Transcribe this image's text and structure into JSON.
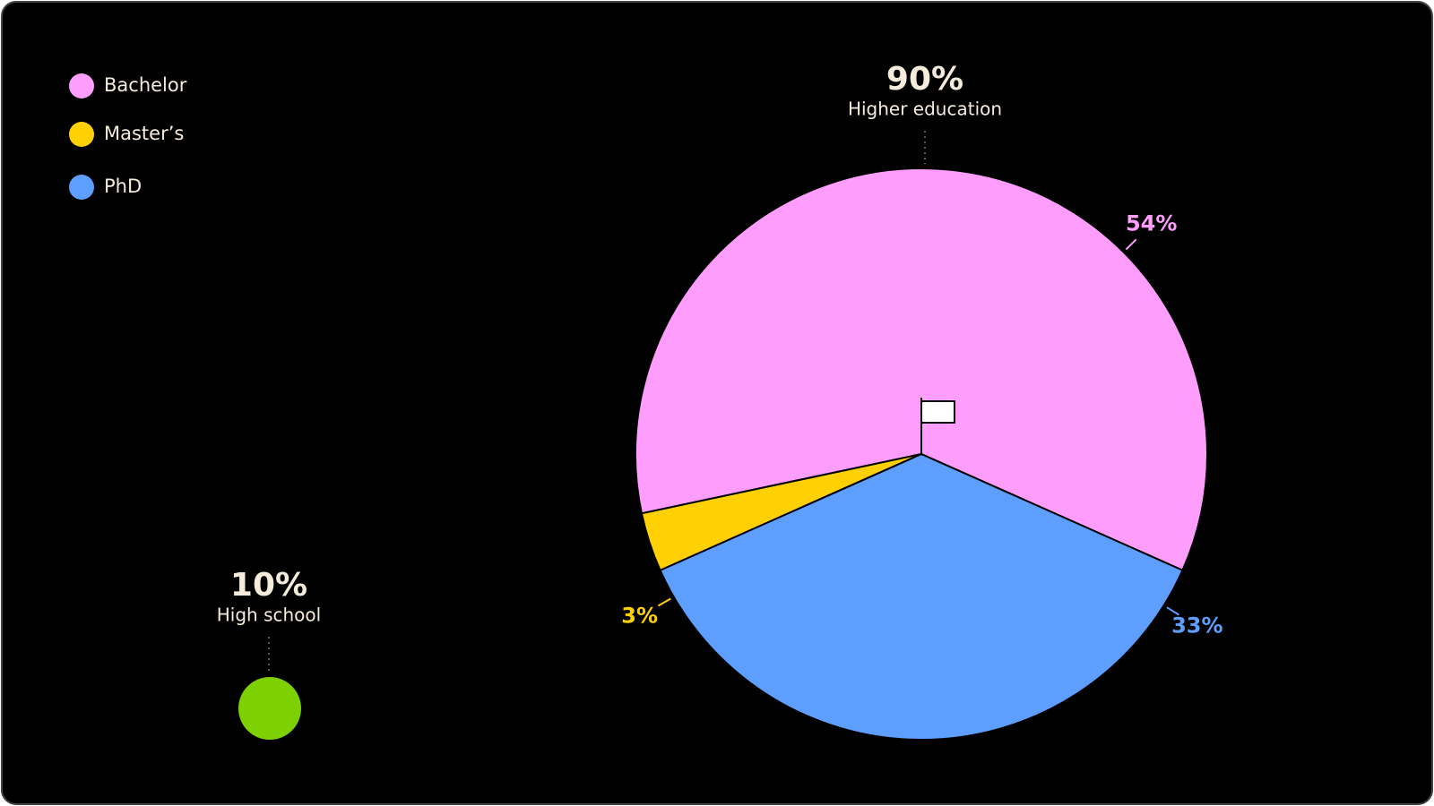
{
  "chart_data": {
    "type": "pie",
    "categories": [
      "Bachelor",
      "Master’s",
      "PhD"
    ],
    "values": [
      54,
      3,
      33
    ],
    "value_labels": [
      "54%",
      "3%",
      "33%"
    ],
    "colors": [
      "#ff9dfd",
      "#ffd105",
      "#5d9efe"
    ],
    "annotations": [
      {
        "value": 90,
        "label": "90%",
        "text": "Higher education"
      },
      {
        "value": 10,
        "label": "10%",
        "text": "High school",
        "color": "#7ed100"
      }
    ]
  }
}
